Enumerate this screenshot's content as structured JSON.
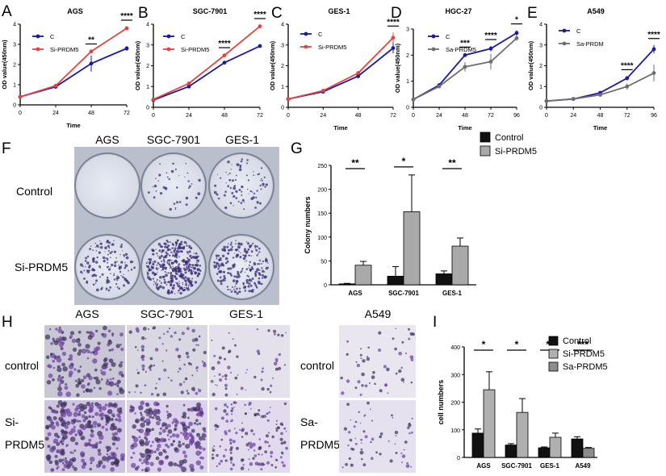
{
  "panel_letters": {
    "A": "A",
    "B": "B",
    "C": "C",
    "D": "D",
    "E": "E",
    "F": "F",
    "G": "G",
    "H": "H",
    "I": "I"
  },
  "colors": {
    "blue": "#1a1aa6",
    "red": "#e0453f",
    "gray": "#6e6e6e",
    "black": "#111111",
    "bar_gray": "#a9a9a9",
    "bar_light": "#8c8c8c"
  },
  "photos_F": {
    "columns": [
      "AGS",
      "SGC-7901",
      "GES-1"
    ],
    "rows": [
      "Control",
      "Si-PRDM5"
    ]
  },
  "photos_H": {
    "columns": [
      "AGS",
      "SGC-7901",
      "GES-1"
    ],
    "rows": [
      "control",
      "Si-\nPRDM5"
    ],
    "column_right": "A549",
    "rows_right": [
      "control",
      "Sa-\nPRDM5"
    ]
  },
  "chart_data": [
    {
      "panel": "A",
      "type": "line",
      "title": "AGS",
      "xlabel": "Time",
      "ylabel": "OD value(450nm)",
      "x": [
        0,
        24,
        48,
        72
      ],
      "xlim": [
        0,
        72
      ],
      "ylim": [
        0,
        4
      ],
      "yticks": [
        0,
        1,
        2,
        3,
        4
      ],
      "series": [
        {
          "name": "C",
          "color": "#1a1aa6",
          "values": [
            0.4,
            0.9,
            2.05,
            2.8
          ],
          "err": [
            0.03,
            0.1,
            0.4,
            0.12
          ]
        },
        {
          "name": "Si-PRDM5",
          "color": "#e0453f",
          "values": [
            0.4,
            0.95,
            2.65,
            3.8
          ],
          "err": [
            0.03,
            0.08,
            0.05,
            0.08
          ]
        }
      ],
      "sig": [
        {
          "x": 48,
          "text": "**"
        },
        {
          "x": 72,
          "text": "****"
        }
      ]
    },
    {
      "panel": "B",
      "type": "line",
      "title": "SGC-7901",
      "xlabel": "",
      "ylabel": "OD value(450nm)",
      "x": [
        0,
        24,
        48,
        72
      ],
      "xlim": [
        0,
        72
      ],
      "ylim": [
        0,
        4
      ],
      "yticks": [
        0,
        1,
        2,
        3,
        4
      ],
      "series": [
        {
          "name": "C",
          "color": "#1a1aa6",
          "values": [
            0.35,
            1.0,
            2.15,
            2.95
          ],
          "err": [
            0.03,
            0.05,
            0.05,
            0.05
          ]
        },
        {
          "name": "Si-PRDM5",
          "color": "#e0453f",
          "values": [
            0.38,
            1.15,
            2.5,
            3.9
          ],
          "err": [
            0.03,
            0.05,
            0.06,
            0.06
          ]
        }
      ],
      "sig": [
        {
          "x": 48,
          "text": "****"
        },
        {
          "x": 72,
          "text": "****"
        }
      ]
    },
    {
      "panel": "C",
      "type": "line",
      "title": "GES-1",
      "xlabel": "Time",
      "ylabel": "OD value(450nm)",
      "x": [
        0,
        24,
        48,
        72
      ],
      "xlim": [
        0,
        72
      ],
      "ylim": [
        0,
        4
      ],
      "yticks": [
        0,
        1,
        2,
        3,
        4
      ],
      "series": [
        {
          "name": "C",
          "color": "#1a1aa6",
          "values": [
            0.4,
            0.75,
            1.5,
            2.85
          ],
          "err": [
            0.03,
            0.05,
            0.1,
            0.25
          ]
        },
        {
          "name": "Si-PRDM5",
          "color": "#e0453f",
          "values": [
            0.4,
            0.8,
            1.65,
            3.35
          ],
          "err": [
            0.03,
            0.05,
            0.08,
            0.25
          ]
        }
      ],
      "sig": [
        {
          "x": 72,
          "text": "****"
        }
      ]
    },
    {
      "panel": "D",
      "type": "line",
      "title": "HGC-27",
      "xlabel": "Time",
      "ylabel": "OD value(450nm)",
      "x": [
        0,
        24,
        48,
        72,
        96
      ],
      "xlim": [
        0,
        96
      ],
      "ylim": [
        0,
        3
      ],
      "yticks": [
        0,
        1,
        2,
        3
      ],
      "series": [
        {
          "name": "C",
          "color": "#1a1aa6",
          "values": [
            0.3,
            0.85,
            2.0,
            2.25,
            2.85
          ],
          "err": [
            0.03,
            0.06,
            0.06,
            0.1,
            0.1
          ]
        },
        {
          "name": "Sa-PRDM5",
          "color": "#6e6e6e",
          "values": [
            0.3,
            0.8,
            1.55,
            1.75,
            2.65
          ],
          "err": [
            0.03,
            0.06,
            0.18,
            0.3,
            0.1
          ]
        }
      ],
      "sig": [
        {
          "x": 48,
          "text": "***"
        },
        {
          "x": 72,
          "text": "****"
        },
        {
          "x": 96,
          "text": "*"
        }
      ]
    },
    {
      "panel": "E",
      "type": "line",
      "title": "A549",
      "xlabel": "Time",
      "ylabel": "OD value(450nm)",
      "x": [
        0,
        24,
        48,
        72,
        96
      ],
      "xlim": [
        0,
        96
      ],
      "ylim": [
        0,
        4
      ],
      "yticks": [
        0,
        1,
        2,
        3,
        4
      ],
      "series": [
        {
          "name": "C",
          "color": "#1a1aa6",
          "values": [
            0.3,
            0.4,
            0.7,
            1.4,
            2.8
          ],
          "err": [
            0.03,
            0.05,
            0.06,
            0.1,
            0.2
          ]
        },
        {
          "name": "Sa-PRDM",
          "color": "#6e6e6e",
          "values": [
            0.3,
            0.4,
            0.6,
            1.0,
            1.65
          ],
          "err": [
            0.03,
            0.05,
            0.06,
            0.15,
            0.4
          ]
        }
      ],
      "sig": [
        {
          "x": 72,
          "text": "****"
        },
        {
          "x": 96,
          "text": "****"
        }
      ]
    },
    {
      "panel": "G",
      "type": "bar",
      "title": "",
      "xlabel": "",
      "ylabel": "Colony numbers",
      "categories": [
        "AGS",
        "SGC-7901",
        "GES-1"
      ],
      "ylim": [
        0,
        250
      ],
      "yticks": [
        0,
        50,
        100,
        150,
        200,
        250
      ],
      "series": [
        {
          "name": "Control",
          "color": "#111111",
          "values": [
            2,
            18,
            23
          ],
          "err": [
            1,
            20,
            6
          ]
        },
        {
          "name": "Si-PRDM5",
          "color": "#a9a9a9",
          "values": [
            41,
            153,
            81
          ],
          "err": [
            8,
            77,
            17
          ]
        }
      ],
      "sig": [
        "**",
        "*",
        "**"
      ]
    },
    {
      "panel": "I",
      "type": "bar",
      "title": "",
      "xlabel": "",
      "ylabel": "cell numbers",
      "categories": [
        "AGS",
        "SGC-7901",
        "GES-1",
        "A549"
      ],
      "ylim": [
        0,
        400
      ],
      "yticks": [
        0,
        100,
        200,
        300,
        400
      ],
      "series": [
        {
          "name": "Control",
          "color": "#111111",
          "values": [
            88,
            45,
            35,
            67
          ],
          "err": [
            15,
            5,
            3,
            8
          ]
        },
        {
          "name": "Si-PRDM5",
          "color": "#b0b0b0",
          "values": [
            245,
            163,
            73,
            null
          ],
          "err": [
            65,
            50,
            15,
            null
          ]
        },
        {
          "name": "Sa-PRDM5",
          "color": "#8c8c8c",
          "values": [
            null,
            null,
            null,
            33
          ],
          "err": [
            null,
            null,
            null,
            3
          ]
        }
      ],
      "sig": [
        "*",
        "*",
        "**",
        "***"
      ]
    }
  ]
}
